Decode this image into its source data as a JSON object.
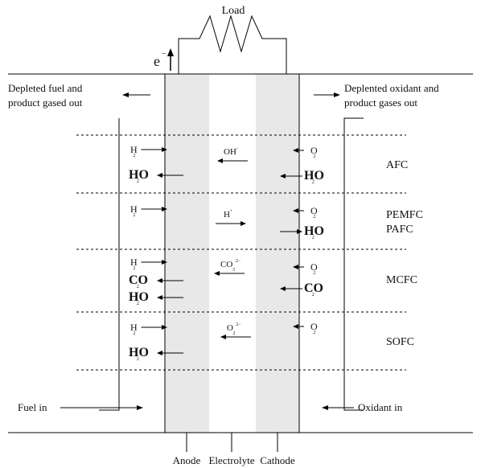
{
  "load_label": "Load",
  "electron_label": "e",
  "electron_sup": "−",
  "depleted_fuel": [
    "Depleted fuel and",
    "product gased out"
  ],
  "depleted_oxidant": [
    "Deplented oxidant and",
    "product gases out"
  ],
  "fuel_in": "Fuel in",
  "oxidant_in": "Oxidant in",
  "bottom_labels": {
    "anode": "Anode",
    "electrolyte": "Electrolyte",
    "cathode": "Cathode"
  },
  "cells": [
    {
      "type": "AFC",
      "anode": [
        {
          "base": "H",
          "sub": "2",
          "big": false
        },
        {
          "base": "HO",
          "sub": "2",
          "big": true
        }
      ],
      "ion": {
        "base": "OH",
        "sup": "−",
        "dir": "left"
      },
      "cathode": [
        {
          "base": "O",
          "sub": "2",
          "big": false
        },
        {
          "base": "HO",
          "sub": "2",
          "big": true
        }
      ]
    },
    {
      "type": "PEMFC",
      "type2": "PAFC",
      "anode": [
        {
          "base": "H",
          "sub": "2",
          "big": false
        }
      ],
      "ion": {
        "base": "H",
        "sup": "+",
        "dir": "right"
      },
      "cathode": [
        {
          "base": "O",
          "sub": "2",
          "big": false
        },
        {
          "base": "HO",
          "sub": "2",
          "big": true
        }
      ]
    },
    {
      "type": "MCFC",
      "anode": [
        {
          "base": "H",
          "sub": "2",
          "big": false
        },
        {
          "base": "CO",
          "sub": "2",
          "big": true
        },
        {
          "base": "HO",
          "sub": "2",
          "big": true
        }
      ],
      "ion": {
        "base": "CO",
        "sub": "3",
        "sup": "2−",
        "dir": "left"
      },
      "cathode": [
        {
          "base": "O",
          "sub": "2",
          "big": false
        },
        {
          "base": "CO",
          "sub": "2",
          "big": true
        }
      ]
    },
    {
      "type": "SOFC",
      "anode": [
        {
          "base": "H",
          "sub": "2",
          "big": false
        },
        {
          "base": "HO",
          "sub": "2",
          "big": true
        }
      ],
      "ion": {
        "base": "O",
        "sub": "2",
        "sup": "2−",
        "dir": "left"
      },
      "cathode": [
        {
          "base": "O",
          "sub": "2",
          "big": false
        }
      ]
    }
  ]
}
